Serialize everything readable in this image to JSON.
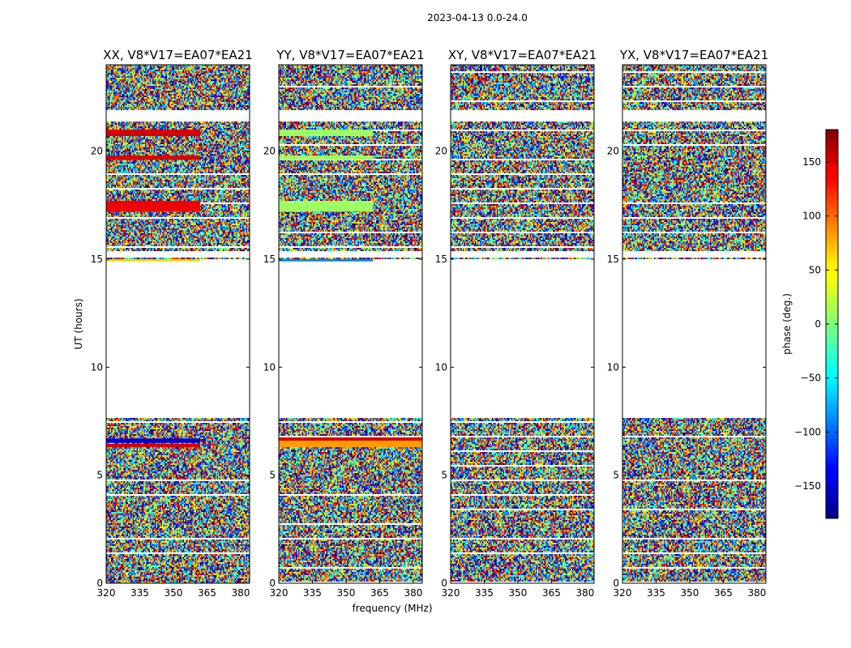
{
  "chart_data": {
    "type": "heatmap",
    "suptitle": "2023-04-13 0.0-24.0",
    "xlabel": "frequency (MHz)",
    "ylabel": "UT (hours)",
    "xlim": [
      320,
      384
    ],
    "ylim": [
      0,
      24
    ],
    "xticks": [
      320,
      335,
      350,
      365,
      380
    ],
    "yticks": [
      0,
      5,
      10,
      15,
      20
    ],
    "panels": [
      {
        "title": "XX, V8*V17=EA07*EA21",
        "bands": [
          {
            "t0": 6.3,
            "t1": 6.45,
            "phase": 150,
            "f1": 362
          },
          {
            "t0": 6.5,
            "t1": 6.7,
            "phase": -150,
            "f1": 362
          },
          {
            "t0": 14.9,
            "t1": 15.0,
            "phase": 60,
            "f1": 362
          },
          {
            "t0": 17.2,
            "t1": 17.7,
            "phase": 140,
            "f1": 362
          },
          {
            "t0": 19.6,
            "t1": 19.8,
            "phase": 150,
            "f1": 362
          },
          {
            "t0": 20.7,
            "t1": 21.0,
            "phase": 150,
            "f1": 362
          }
        ]
      },
      {
        "title": "YY, V8*V17=EA07*EA21",
        "bands": [
          {
            "t0": 6.3,
            "t1": 6.6,
            "phase": 80,
            "f1": 384
          },
          {
            "t0": 6.6,
            "t1": 6.75,
            "phase": 150,
            "f1": 384
          },
          {
            "t0": 14.9,
            "t1": 15.0,
            "phase": -90,
            "f1": 362
          },
          {
            "t0": 17.2,
            "t1": 17.7,
            "phase": 10,
            "f1": 362
          },
          {
            "t0": 19.6,
            "t1": 19.8,
            "phase": 10,
            "f1": 362
          },
          {
            "t0": 20.7,
            "t1": 21.0,
            "phase": 10,
            "f1": 362
          }
        ]
      },
      {
        "title": "XY, V8*V17=EA07*EA21",
        "bands": []
      },
      {
        "title": "YX, V8*V17=EA07*EA21",
        "bands": []
      }
    ],
    "data_gaps": [
      {
        "t0": 7.65,
        "t1": 15.0
      },
      {
        "t0": 15.05,
        "t1": 15.4
      },
      {
        "t0": 21.35,
        "t1": 21.9
      }
    ],
    "colorbar": {
      "label": "phase (deg.)",
      "range": [
        -180,
        180
      ],
      "ticks": [
        150,
        100,
        50,
        0,
        -50,
        -100,
        -150
      ],
      "tick_labels": [
        "150",
        "100",
        "50",
        "0",
        "−50",
        "−100",
        "−150"
      ]
    }
  }
}
